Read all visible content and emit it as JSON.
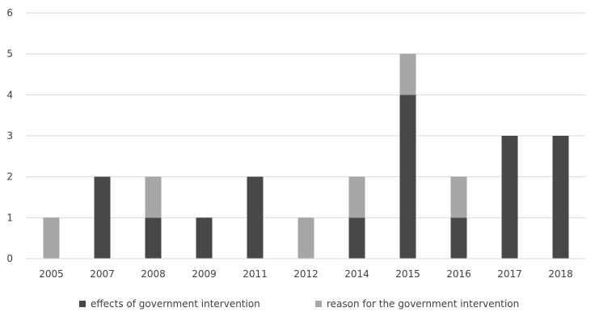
{
  "chart_data": {
    "type": "bar",
    "stacked": true,
    "categories": [
      "2005",
      "2007",
      "2008",
      "2009",
      "2011",
      "2012",
      "2014",
      "2015",
      "2016",
      "2017",
      "2018"
    ],
    "series": [
      {
        "name": "effects of government intervention",
        "color": "#474747",
        "values": [
          0,
          2,
          1,
          1,
          2,
          0,
          1,
          4,
          1,
          3,
          3
        ]
      },
      {
        "name": "reason for the government intervention",
        "color": "#a6a6a6",
        "values": [
          1,
          0,
          1,
          0,
          0,
          1,
          1,
          1,
          1,
          0,
          0
        ]
      }
    ],
    "ylim": [
      0,
      6
    ],
    "yticks": [
      0,
      1,
      2,
      3,
      4,
      5,
      6
    ],
    "grid": true,
    "legend": "bottom"
  }
}
